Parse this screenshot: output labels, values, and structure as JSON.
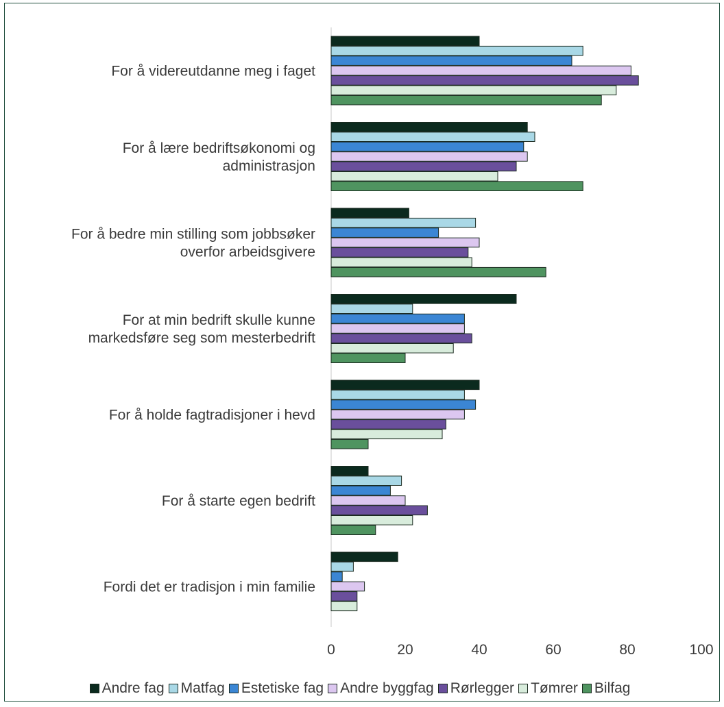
{
  "chart_data": {
    "type": "bar",
    "orientation": "horizontal",
    "categories": [
      "For å videreutdanne meg i faget",
      "For å lære bedriftsøkonomi og administrasjon",
      "For å bedre min stilling som jobbsøker overfor arbeidsgivere",
      "For at min bedrift skulle kunne markedsføre seg som mesterbedrift",
      "For å holde fagtradisjoner i hevd",
      "For å starte egen bedrift",
      "Fordi det er tradisjon i min familie"
    ],
    "category_lines": [
      [
        "For å videreutdanne meg i faget"
      ],
      [
        "For å lære bedriftsøkonomi og",
        "administrasjon"
      ],
      [
        "For å bedre min stilling som jobbsøker",
        "overfor arbeidsgivere"
      ],
      [
        "For at min bedrift skulle kunne",
        "markedsføre seg som mesterbedrift"
      ],
      [
        "For å holde fagtradisjoner i hevd"
      ],
      [
        "For å starte egen bedrift"
      ],
      [
        "Fordi det er tradisjon i min familie"
      ]
    ],
    "series": [
      {
        "name": "Andre fag",
        "color": "#0b2a1e",
        "values": [
          40,
          53,
          21,
          50,
          40,
          10,
          18
        ]
      },
      {
        "name": "Matfag",
        "color": "#a9d8e6",
        "values": [
          68,
          55,
          39,
          22,
          36,
          19,
          6
        ]
      },
      {
        "name": "Estetiske fag",
        "color": "#3b86d4",
        "values": [
          65,
          52,
          29,
          36,
          39,
          16,
          3
        ]
      },
      {
        "name": "Andre byggfag",
        "color": "#dcc7f0",
        "values": [
          81,
          53,
          40,
          36,
          36,
          20,
          9
        ]
      },
      {
        "name": "Rørlegger",
        "color": "#6a4f9c",
        "values": [
          83,
          50,
          37,
          38,
          31,
          26,
          7
        ]
      },
      {
        "name": "Tømrer",
        "color": "#d8ecdc",
        "values": [
          77,
          45,
          38,
          33,
          30,
          22,
          7
        ]
      },
      {
        "name": "Bilfag",
        "color": "#4f9460",
        "values": [
          73,
          68,
          58,
          20,
          10,
          12,
          null
        ]
      }
    ],
    "xlim": [
      0,
      100
    ],
    "xticks": [
      0,
      20,
      40,
      60,
      80,
      100
    ],
    "grid": false,
    "legend_position": "bottom"
  }
}
